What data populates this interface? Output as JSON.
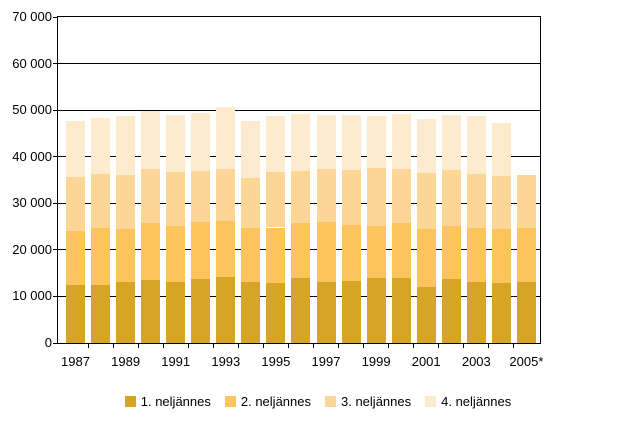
{
  "chart_data": {
    "type": "bar",
    "stacked": true,
    "title": "",
    "xlabel": "",
    "ylabel": "",
    "ylim": [
      0,
      70000
    ],
    "ytick_step": 10000,
    "ytick_labels": [
      "0",
      "10 000",
      "20 000",
      "30 000",
      "40 000",
      "50 000",
      "60 000",
      "70 000"
    ],
    "categories": [
      "1987",
      "1988",
      "1989",
      "1990",
      "1991",
      "1992",
      "1993",
      "1994",
      "1995",
      "1996",
      "1997",
      "1998",
      "1999",
      "2000",
      "2001",
      "2002",
      "2003",
      "2004",
      "2005*"
    ],
    "xtick_labels": [
      "1987",
      "1989",
      "1991",
      "1993",
      "1995",
      "1997",
      "1999",
      "2001",
      "2003",
      "2005*"
    ],
    "grid": true,
    "legend_position": "bottom",
    "series": [
      {
        "name": "1. neljännes",
        "color": "#D6A426",
        "values": [
          12500,
          12500,
          13000,
          13600,
          13200,
          13800,
          14100,
          13200,
          12900,
          14000,
          13000,
          13400,
          13900,
          14000,
          12100,
          13800,
          13000,
          12900,
          13000
        ]
      },
      {
        "name": "2. neljännes",
        "color": "#FCC45C",
        "values": [
          11600,
          12100,
          11400,
          12100,
          11900,
          12100,
          12100,
          11400,
          11900,
          11700,
          12900,
          12000,
          11200,
          11700,
          12400,
          11400,
          11700,
          11600,
          11700
        ]
      },
      {
        "name": "3. neljännes",
        "color": "#FCD696",
        "values": [
          11600,
          11600,
          11700,
          11600,
          11700,
          11100,
          11200,
          10900,
          12000,
          11200,
          11400,
          11700,
          12500,
          11600,
          11900,
          12000,
          11500,
          11400,
          11300
        ]
      },
      {
        "name": "4. neljännes",
        "color": "#FDEBCD",
        "values": [
          11900,
          12200,
          12600,
          12500,
          12100,
          12300,
          13300,
          12200,
          11900,
          12200,
          11600,
          11800,
          11100,
          11800,
          11800,
          11700,
          12500,
          11300,
          null
        ]
      }
    ],
    "colors": {
      "axis": "#000000",
      "grid": "#000000",
      "background": "#ffffff"
    }
  }
}
